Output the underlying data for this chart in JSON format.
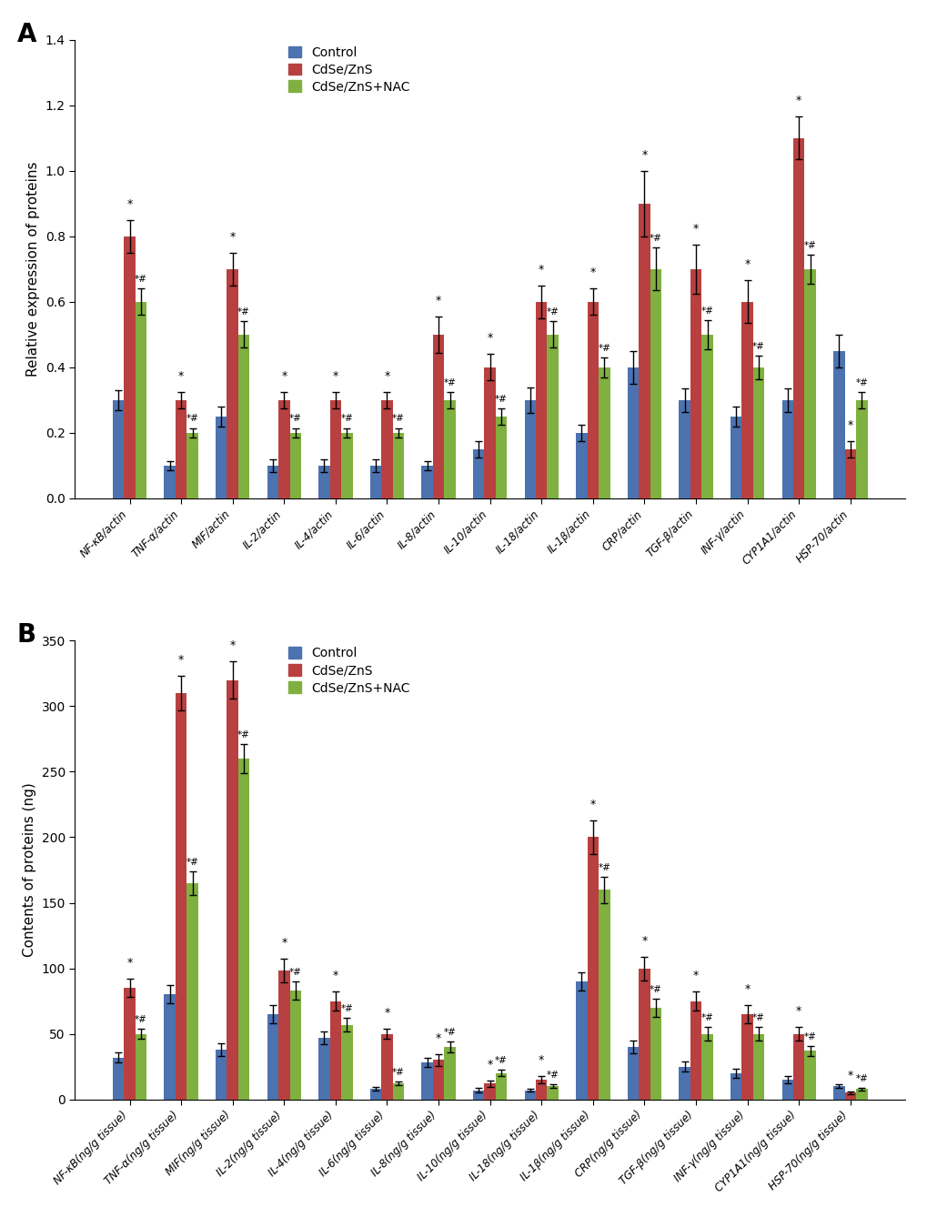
{
  "panel_A": {
    "categories": [
      "NF-κB/actin",
      "TNF-α/actin",
      "MIF/actin",
      "IL-2/actin",
      "IL-4/actin",
      "IL-6/actin",
      "IL-8/actin",
      "IL-10/actin",
      "IL-18/actin",
      "IL-1β/actin",
      "CRP/actin",
      "TGF-β/actin",
      "INF-γ/actin",
      "CYP1A1/actin",
      "HSP-70/actin"
    ],
    "control": [
      0.3,
      0.1,
      0.25,
      0.1,
      0.1,
      0.1,
      0.1,
      0.15,
      0.3,
      0.2,
      0.4,
      0.3,
      0.25,
      0.3,
      0.45
    ],
    "cdse_zns": [
      0.8,
      0.3,
      0.7,
      0.3,
      0.3,
      0.3,
      0.5,
      0.4,
      0.6,
      0.6,
      0.9,
      0.7,
      0.6,
      1.1,
      0.15
    ],
    "cdse_zns_nac": [
      0.6,
      0.2,
      0.5,
      0.2,
      0.2,
      0.2,
      0.3,
      0.25,
      0.5,
      0.4,
      0.7,
      0.5,
      0.4,
      0.7,
      0.3
    ],
    "control_err": [
      0.03,
      0.015,
      0.03,
      0.02,
      0.02,
      0.02,
      0.015,
      0.025,
      0.04,
      0.025,
      0.05,
      0.035,
      0.03,
      0.035,
      0.05
    ],
    "cdse_zns_err": [
      0.05,
      0.025,
      0.05,
      0.025,
      0.025,
      0.025,
      0.055,
      0.04,
      0.05,
      0.04,
      0.1,
      0.075,
      0.065,
      0.065,
      0.025
    ],
    "cdse_zns_nac_err": [
      0.04,
      0.015,
      0.04,
      0.015,
      0.015,
      0.015,
      0.025,
      0.025,
      0.04,
      0.03,
      0.065,
      0.045,
      0.035,
      0.045,
      0.025
    ],
    "ylabel": "Relative expression of proteins",
    "ylim": [
      0,
      1.4
    ],
    "yticks": [
      0,
      0.2,
      0.4,
      0.6,
      0.8,
      1.0,
      1.2,
      1.4
    ],
    "star_cdse": [
      true,
      true,
      true,
      true,
      true,
      true,
      true,
      true,
      true,
      true,
      true,
      true,
      true,
      true,
      true
    ],
    "star_nac": [
      true,
      true,
      true,
      true,
      true,
      true,
      true,
      true,
      true,
      true,
      true,
      true,
      true,
      true,
      true
    ]
  },
  "panel_B": {
    "categories": [
      "NF-κB(ng/g tissue)",
      "TNF-α(ng/g tissue)",
      "MIF(ng/g tissue)",
      "IL-2(ng/g tissue)",
      "IL-4(ng/g tissue)",
      "IL-6(ng/g tissue)",
      "IL-8(ng/g tissue)",
      "IL-10(ng/g tissue)",
      "IL-18(ng/g tissue)",
      "IL-1β(ng/g tissue)",
      "CRP(ng/g tissue)",
      "TGF-β(ng/g tissue)",
      "INF-γ(ng/g tissue)",
      "CYP1A1(ng/g tissue)",
      "HSP-70(ng/g tissue)"
    ],
    "control": [
      32,
      80,
      38,
      65,
      47,
      8,
      28,
      7,
      7,
      90,
      40,
      25,
      20,
      15,
      10
    ],
    "cdse_zns": [
      85,
      310,
      320,
      98,
      75,
      50,
      30,
      12,
      15,
      200,
      100,
      75,
      65,
      50,
      5
    ],
    "cdse_zns_nac": [
      50,
      165,
      260,
      83,
      57,
      12,
      40,
      20,
      10,
      160,
      70,
      50,
      50,
      37,
      8
    ],
    "control_err": [
      4,
      7,
      5,
      7,
      5,
      1.5,
      3.5,
      1.5,
      1,
      7,
      5,
      4,
      3.5,
      2.5,
      1.5
    ],
    "cdse_zns_err": [
      7,
      13,
      14,
      9,
      7,
      4,
      4.5,
      2.5,
      2.5,
      13,
      9,
      7,
      7,
      5,
      1
    ],
    "cdse_zns_nac_err": [
      4,
      9,
      11,
      7,
      5,
      1.5,
      4,
      2.5,
      1.5,
      10,
      7,
      5,
      5,
      4,
      1
    ],
    "star_cdse": [
      true,
      true,
      true,
      true,
      true,
      true,
      true,
      true,
      true,
      true,
      true,
      true,
      true,
      true,
      true
    ],
    "star_nac": [
      true,
      true,
      true,
      true,
      true,
      true,
      true,
      true,
      true,
      true,
      true,
      true,
      true,
      true,
      true
    ],
    "ylabel": "Contents of proteins (ng)",
    "ylim": [
      0,
      350
    ],
    "yticks": [
      0,
      50,
      100,
      150,
      200,
      250,
      300,
      350
    ]
  },
  "colors": {
    "control": "#4C72B0",
    "cdse_zns": "#B94040",
    "cdse_zns_nac": "#7FB040"
  },
  "legend_labels": [
    "Control",
    "CdSe/ZnS",
    "CdSe/ZnS+NAC"
  ],
  "bar_width": 0.22,
  "figure_bg": "#FFFFFF",
  "panel_bg": "#FFFFFF"
}
